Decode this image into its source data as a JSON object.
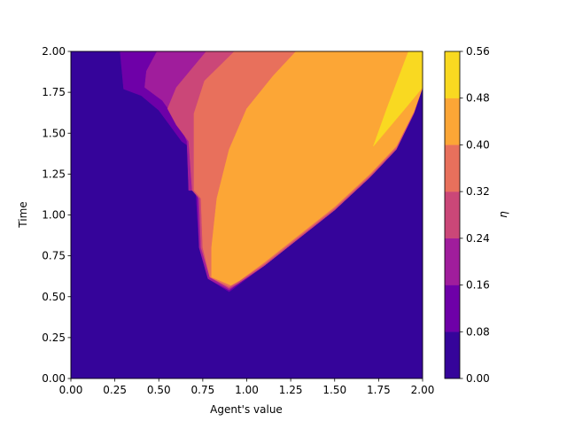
{
  "chart_data": {
    "type": "contour",
    "xlabel": "Agent's value",
    "ylabel": "Time",
    "xlim": [
      0,
      2
    ],
    "ylim": [
      0,
      2
    ],
    "xticks": [
      {
        "value": 0,
        "label": "0.00"
      },
      {
        "value": 0.25,
        "label": "0.25"
      },
      {
        "value": 0.5,
        "label": "0.50"
      },
      {
        "value": 0.75,
        "label": "0.75"
      },
      {
        "value": 1,
        "label": "1.00"
      },
      {
        "value": 1.25,
        "label": "1.25"
      },
      {
        "value": 1.5,
        "label": "1.50"
      },
      {
        "value": 1.75,
        "label": "1.75"
      },
      {
        "value": 2,
        "label": "2.00"
      }
    ],
    "yticks": [
      {
        "value": 0,
        "label": "0.00"
      },
      {
        "value": 0.25,
        "label": "0.25"
      },
      {
        "value": 0.5,
        "label": "0.50"
      },
      {
        "value": 0.75,
        "label": "0.75"
      },
      {
        "value": 1,
        "label": "1.00"
      },
      {
        "value": 1.25,
        "label": "1.25"
      },
      {
        "value": 1.5,
        "label": "1.50"
      },
      {
        "value": 1.75,
        "label": "1.75"
      },
      {
        "value": 2,
        "label": "2.00"
      }
    ],
    "regions": [
      {
        "color": "#35049a",
        "x": [
          0,
          2,
          2,
          0
        ],
        "y": [
          0,
          0,
          2,
          2
        ]
      },
      {
        "color": "#6e00a8",
        "x": [
          0.28,
          0.3,
          0.4,
          0.5,
          0.63,
          0.67,
          0.67,
          0.71,
          0.73,
          0.78,
          0.9,
          0.95,
          1.1,
          1.3,
          1.5,
          1.7,
          1.85,
          1.95,
          2.0,
          2.0
        ],
        "y": [
          2,
          1.77,
          1.73,
          1.64,
          1.45,
          1.42,
          1.15,
          1.15,
          0.8,
          0.61,
          0.53,
          0.57,
          0.69,
          0.86,
          1.03,
          1.23,
          1.4,
          1.62,
          1.78,
          2
        ]
      },
      {
        "color": "#a01d9c",
        "x": [
          0.49,
          0.43,
          0.42,
          0.52,
          0.62,
          0.66,
          0.67,
          0.72,
          0.73,
          0.78,
          0.9,
          0.95,
          1.1,
          1.3,
          1.5,
          1.7,
          1.85,
          1.95,
          2.0,
          2.0
        ],
        "y": [
          2,
          1.88,
          1.78,
          1.7,
          1.55,
          1.45,
          1.15,
          1.15,
          0.8,
          0.61,
          0.54,
          0.58,
          0.69,
          0.86,
          1.03,
          1.23,
          1.4,
          1.62,
          1.78,
          2
        ]
      },
      {
        "color": "#cb4778",
        "x": [
          0.77,
          0.6,
          0.55,
          0.6,
          0.67,
          0.69,
          0.73,
          0.74,
          0.79,
          0.9,
          0.95,
          1.1,
          1.3,
          1.5,
          1.7,
          1.85,
          1.95,
          2.0,
          2.0
        ],
        "y": [
          2,
          1.78,
          1.65,
          1.55,
          1.45,
          1.15,
          1.1,
          0.8,
          0.62,
          0.55,
          0.58,
          0.69,
          0.86,
          1.03,
          1.23,
          1.4,
          1.62,
          1.78,
          2
        ]
      },
      {
        "color": "#e8705c",
        "x": [
          0.93,
          0.76,
          0.7,
          0.7,
          0.7,
          0.74,
          0.75,
          0.79,
          0.9,
          0.95,
          1.1,
          1.3,
          1.5,
          1.7,
          1.85,
          1.95,
          2.0,
          2.0
        ],
        "y": [
          2,
          1.82,
          1.62,
          1.45,
          1.15,
          1.1,
          0.8,
          0.62,
          0.56,
          0.59,
          0.7,
          0.87,
          1.04,
          1.24,
          1.41,
          1.63,
          1.78,
          2
        ]
      },
      {
        "color": "#fca636",
        "x": [
          1.28,
          1.15,
          1.0,
          0.9,
          0.83,
          0.8,
          0.8,
          0.91,
          0.96,
          1.1,
          1.3,
          1.5,
          1.7,
          1.85,
          1.95,
          2.0,
          2.0
        ],
        "y": [
          2,
          1.85,
          1.65,
          1.4,
          1.1,
          0.8,
          0.62,
          0.57,
          0.6,
          0.71,
          0.88,
          1.05,
          1.25,
          1.42,
          1.63,
          1.78,
          2
        ]
      },
      {
        "color": "#f9d921",
        "x": [
          1.92,
          1.8,
          1.72,
          1.9,
          2.0,
          2.0
        ],
        "y": [
          2,
          1.66,
          1.42,
          1.65,
          1.78,
          2
        ]
      }
    ],
    "colorbar": {
      "label": "η",
      "levels": [
        0,
        0.08,
        0.16,
        0.24,
        0.32,
        0.4,
        0.48,
        0.56
      ],
      "colors": [
        "#35049a",
        "#6e00a8",
        "#a01d9c",
        "#cb4778",
        "#e8705c",
        "#fca636",
        "#f9d921"
      ],
      "ticks": [
        {
          "value": 0,
          "label": "0.00"
        },
        {
          "value": 0.08,
          "label": "0.08"
        },
        {
          "value": 0.16,
          "label": "0.16"
        },
        {
          "value": 0.24,
          "label": "0.24"
        },
        {
          "value": 0.32,
          "label": "0.32"
        },
        {
          "value": 0.4,
          "label": "0.40"
        },
        {
          "value": 0.48,
          "label": "0.48"
        },
        {
          "value": 0.56,
          "label": "0.56"
        }
      ]
    }
  }
}
